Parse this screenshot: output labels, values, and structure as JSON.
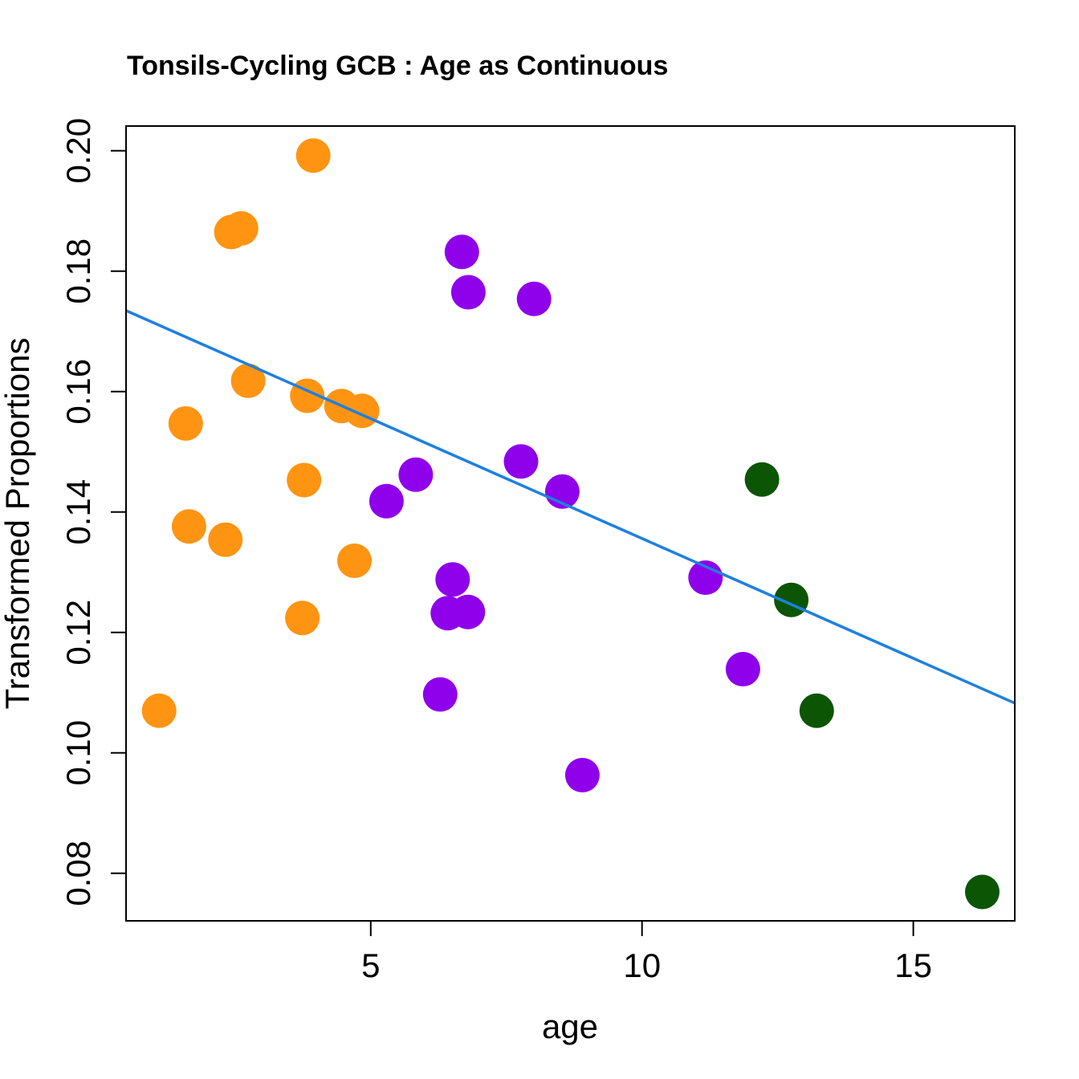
{
  "chart_data": {
    "type": "scatter",
    "title": "Tonsils-Cycling GCB : Age as Continuous",
    "xlabel": "age",
    "ylabel": "Transformed Proportions",
    "xlim": [
      0.49,
      16.87
    ],
    "ylim": [
      0.0721,
      0.2041
    ],
    "x_ticks": [
      5,
      10,
      15
    ],
    "x_tick_labels": [
      "5",
      "10",
      "15"
    ],
    "y_ticks": [
      0.08,
      0.1,
      0.12,
      0.14,
      0.16,
      0.18,
      0.2
    ],
    "y_tick_labels": [
      "0.08",
      "0.10",
      "0.12",
      "0.14",
      "0.16",
      "0.18",
      "0.20"
    ],
    "grid": false,
    "legend": "none",
    "series": [
      {
        "name": "orange-group",
        "color": "#FF9412",
        "points": [
          {
            "x": 3.94,
            "y": 0.1992
          },
          {
            "x": 2.43,
            "y": 0.1865
          },
          {
            "x": 2.61,
            "y": 0.1871
          },
          {
            "x": 2.74,
            "y": 0.1618
          },
          {
            "x": 3.83,
            "y": 0.1593
          },
          {
            "x": 4.46,
            "y": 0.1576
          },
          {
            "x": 4.84,
            "y": 0.1568
          },
          {
            "x": 1.59,
            "y": 0.1547
          },
          {
            "x": 3.77,
            "y": 0.1453
          },
          {
            "x": 1.65,
            "y": 0.1376
          },
          {
            "x": 2.32,
            "y": 0.1354
          },
          {
            "x": 4.7,
            "y": 0.1319
          },
          {
            "x": 3.74,
            "y": 0.1224
          },
          {
            "x": 1.1,
            "y": 0.107
          }
        ]
      },
      {
        "name": "purple-group",
        "color": "#8F00EB",
        "points": [
          {
            "x": 6.68,
            "y": 0.1832
          },
          {
            "x": 6.8,
            "y": 0.1765
          },
          {
            "x": 8.01,
            "y": 0.1754
          },
          {
            "x": 5.29,
            "y": 0.1418
          },
          {
            "x": 5.83,
            "y": 0.1462
          },
          {
            "x": 7.77,
            "y": 0.1484
          },
          {
            "x": 8.53,
            "y": 0.1434
          },
          {
            "x": 6.51,
            "y": 0.1288
          },
          {
            "x": 6.42,
            "y": 0.1232
          },
          {
            "x": 6.79,
            "y": 0.1234
          },
          {
            "x": 6.28,
            "y": 0.1097
          },
          {
            "x": 11.17,
            "y": 0.1291
          },
          {
            "x": 11.86,
            "y": 0.1139
          },
          {
            "x": 8.9,
            "y": 0.0963
          }
        ]
      },
      {
        "name": "green-group",
        "color": "#0C5505",
        "points": [
          {
            "x": 12.21,
            "y": 0.1454
          },
          {
            "x": 12.75,
            "y": 0.1254
          },
          {
            "x": 13.22,
            "y": 0.107
          },
          {
            "x": 16.27,
            "y": 0.0769
          }
        ]
      }
    ],
    "regression_line": {
      "name": "linear-fit",
      "color": "#1E80E0",
      "intercept": 0.1754,
      "slope": -0.00398
    }
  }
}
